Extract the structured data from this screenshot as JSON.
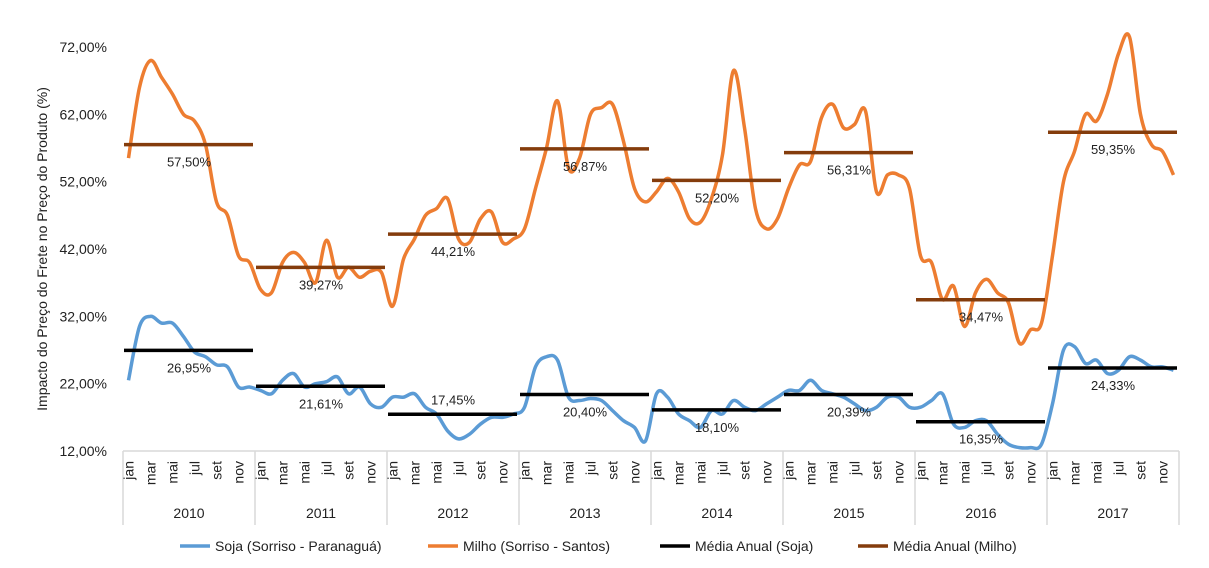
{
  "chart_data": {
    "type": "line",
    "title": "",
    "ylabel": "Impacto do Preço do Frete no Preço do Produto (%)",
    "ylim": [
      12,
      72
    ],
    "yticks": [
      "12,00%",
      "22,00%",
      "32,00%",
      "42,00%",
      "52,00%",
      "62,00%",
      "72,00%"
    ],
    "ytick_values": [
      12,
      22,
      32,
      42,
      52,
      62,
      72
    ],
    "years": [
      "2010",
      "2011",
      "2012",
      "2013",
      "2014",
      "2015",
      "2016",
      "2017"
    ],
    "month_labels": [
      "jan",
      "mar",
      "mai",
      "jul",
      "set",
      "nov"
    ],
    "grid": false,
    "legend_position": "bottom",
    "series": [
      {
        "name": "Soja (Sorriso - Paranaguá)",
        "color": "#5B9BD5",
        "values": [
          22.5,
          30.5,
          32,
          31,
          31,
          29,
          26.7,
          26,
          24.8,
          24.5,
          21.5,
          21.5,
          21,
          20.5,
          22.5,
          23.5,
          21.5,
          22,
          22.3,
          23,
          20.5,
          21.5,
          19,
          18.5,
          20,
          20,
          20.5,
          18.5,
          17.5,
          15,
          13.8,
          14.5,
          16,
          17,
          17,
          17.5,
          18.5,
          24.5,
          26,
          25.5,
          20,
          19.5,
          19.8,
          19.5,
          18,
          16.5,
          15.5,
          13.5,
          20.5,
          20,
          17.5,
          16.5,
          15.5,
          18,
          17.5,
          19.5,
          18.5,
          18,
          19,
          20,
          21,
          21,
          22.5,
          21,
          20.5,
          20,
          19,
          18,
          18.5,
          20,
          20,
          18.5,
          18.5,
          19.5,
          20.5,
          16,
          15.5,
          16.5,
          16.5,
          14.5,
          13,
          12.5,
          12.5,
          13,
          19,
          27,
          27.5,
          25,
          25.5,
          23.5,
          24,
          26,
          25.5,
          24.5,
          24.5,
          24
        ]
      },
      {
        "name": "Milho (Sorriso - Santos)",
        "color": "#ED7D31",
        "values": [
          55.5,
          66,
          70,
          67.5,
          65,
          62,
          61,
          57.5,
          49,
          47,
          41,
          40,
          36,
          35.5,
          40,
          41.5,
          40,
          37,
          43.3,
          37.8,
          39.3,
          37.8,
          38.7,
          38.5,
          33.5,
          40.5,
          43.5,
          47,
          48,
          49.5,
          43.5,
          43,
          46.5,
          47.5,
          43,
          43.5,
          45,
          51,
          57,
          64,
          54,
          55.5,
          62,
          63,
          63.5,
          58,
          51,
          49,
          50.5,
          52.5,
          50.5,
          46.5,
          46,
          49.5,
          56,
          68.5,
          60,
          48,
          45,
          46.5,
          51,
          54.5,
          55,
          61.5,
          63.5,
          60,
          60.5,
          62.5,
          50.5,
          53,
          53,
          51,
          41,
          40,
          34.5,
          36.5,
          30.5,
          35.5,
          37.5,
          35.5,
          34,
          28,
          30,
          31,
          41,
          52,
          56.5,
          62,
          61,
          65,
          71,
          73.5,
          62,
          57.5,
          56.5,
          53
        ]
      },
      {
        "name": "Média Anual (Soja)",
        "color": "#000000",
        "values": [
          26.95,
          21.61,
          17.45,
          20.4,
          18.1,
          20.39,
          16.35,
          24.33
        ],
        "labels": [
          "26,95%",
          "21,61%",
          "17,45%",
          "20,40%",
          "18,10%",
          "20,39%",
          "16,35%",
          "24,33%"
        ]
      },
      {
        "name": "Média Anual (Milho)",
        "color": "#843C0C",
        "values": [
          57.5,
          39.27,
          44.21,
          56.87,
          52.2,
          56.31,
          34.47,
          59.35
        ],
        "labels": [
          "57,50%",
          "39,27%",
          "44,21%",
          "56,87%",
          "52,20%",
          "56,31%",
          "34,47%",
          "59,35%"
        ]
      }
    ]
  }
}
